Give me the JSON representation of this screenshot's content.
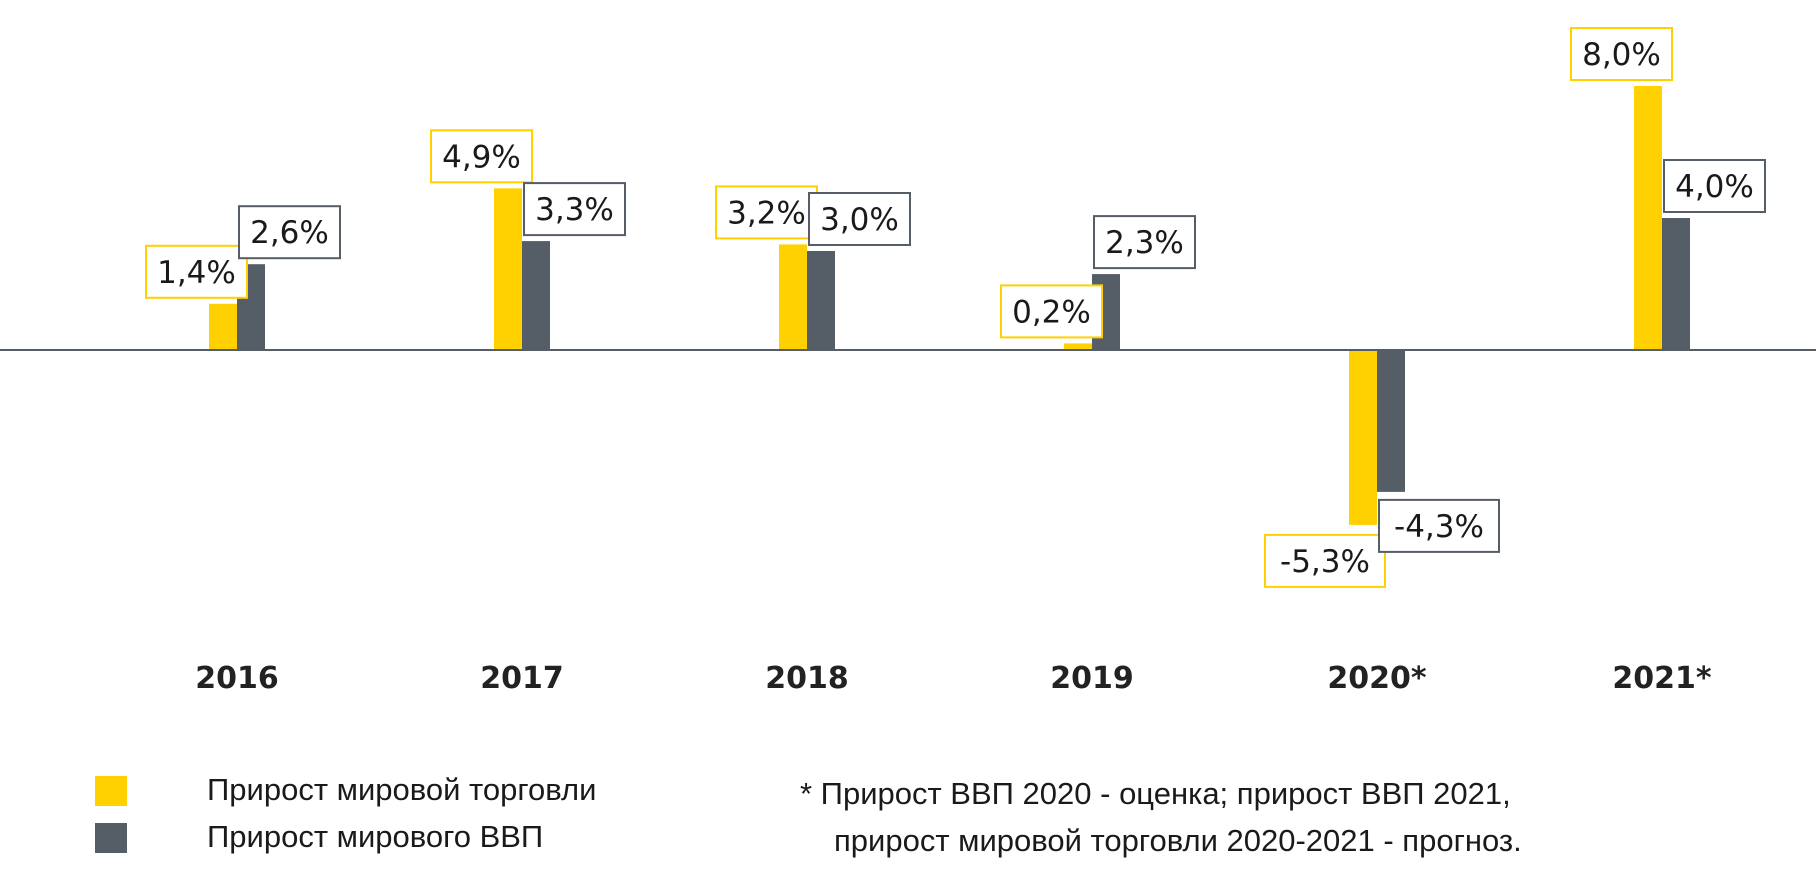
{
  "chart_data": {
    "type": "bar",
    "categories": [
      "2016",
      "2017",
      "2018",
      "2019",
      "2020*",
      "2021*"
    ],
    "series": [
      {
        "name": "Прирост мировой торговли",
        "color": "#FFD100",
        "values": [
          1.4,
          4.9,
          3.2,
          0.2,
          -5.3,
          8.0
        ],
        "labels": [
          "1,4%",
          "4,9%",
          "3,2%",
          "0,2%",
          "-5,3%",
          "8,0%"
        ]
      },
      {
        "name": "Прирост мирового ВВП",
        "color": "#555D66",
        "values": [
          2.6,
          3.3,
          3.0,
          2.3,
          -4.3,
          4.0
        ],
        "labels": [
          "2,6%",
          "3,3%",
          "3,0%",
          "2,3%",
          "-4,3%",
          "4,0%"
        ]
      }
    ],
    "ylim": [
      -6,
      8.5
    ],
    "grid": false,
    "legend_position": "bottom-left"
  },
  "legend": {
    "items": [
      {
        "label": "Прирост мировой торговли",
        "color": "#FFD100"
      },
      {
        "label": "Прирост мирового ВВП",
        "color": "#555D66"
      }
    ]
  },
  "footnote": {
    "line1": "* Прирост ВВП 2020 - оценка; прирост ВВП 2021,",
    "line2": "прирост мировой торговли 2020-2021 - прогноз."
  }
}
